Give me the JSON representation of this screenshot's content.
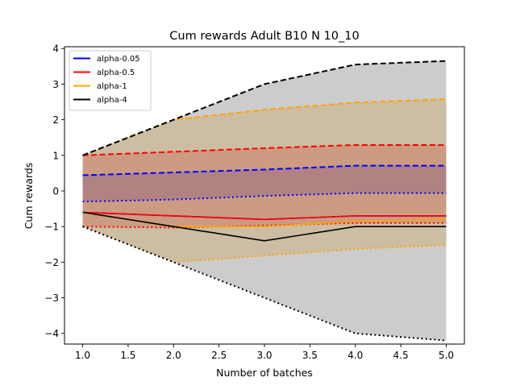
{
  "chart_data": {
    "type": "line",
    "title": "Cum rewards Adult B10 N 10_10",
    "xlabel": "Number of batches",
    "ylabel": "Cum rewards",
    "xlim": [
      0.8,
      5.2
    ],
    "ylim": [
      -4.3,
      4.05
    ],
    "xticks": [
      "1.0",
      "1.5",
      "2.0",
      "2.5",
      "3.0",
      "3.5",
      "4.0",
      "4.5",
      "5.0"
    ],
    "yticks": [
      "4",
      "3",
      "2",
      "1",
      "0",
      "−1",
      "−2",
      "−3",
      "−4"
    ],
    "legend_position": "top-left",
    "x": [
      1,
      2,
      3,
      4,
      5
    ],
    "series": [
      {
        "name": "alpha-0.05",
        "color": "#0000ff",
        "fill_opacity": 0.2,
        "mean": [
          -0.6,
          -0.7,
          -0.8,
          -0.7,
          -0.7
        ],
        "upper": [
          0.44,
          0.52,
          0.6,
          0.71,
          0.71
        ],
        "lower": [
          -0.3,
          -0.24,
          -0.14,
          -0.06,
          -0.06
        ]
      },
      {
        "name": "alpha-0.5",
        "color": "#ff0000",
        "fill_opacity": 0.2,
        "mean": [
          -0.6,
          -0.7,
          -0.8,
          -0.7,
          -0.7
        ],
        "upper": [
          1.0,
          1.1,
          1.2,
          1.29,
          1.29
        ],
        "lower": [
          -1.0,
          -1.03,
          -0.97,
          -0.9,
          -0.9
        ]
      },
      {
        "name": "alpha-1",
        "color": "#ffa500",
        "fill_opacity": 0.2,
        "mean": [
          -0.6,
          -1.0,
          -1.0,
          -0.85,
          -0.8
        ],
        "upper": [
          1.0,
          2.0,
          2.28,
          2.48,
          2.58
        ],
        "lower": [
          -1.0,
          -2.0,
          -1.82,
          -1.63,
          -1.52
        ]
      },
      {
        "name": "alpha-4",
        "color": "#000000",
        "fill_opacity": 0.2,
        "mean": [
          -0.6,
          -1.0,
          -1.4,
          -1.0,
          -1.0
        ],
        "upper": [
          1.0,
          2.0,
          3.0,
          3.55,
          3.65
        ],
        "lower": [
          -1.0,
          -2.0,
          -3.0,
          -4.0,
          -4.2
        ]
      }
    ]
  }
}
